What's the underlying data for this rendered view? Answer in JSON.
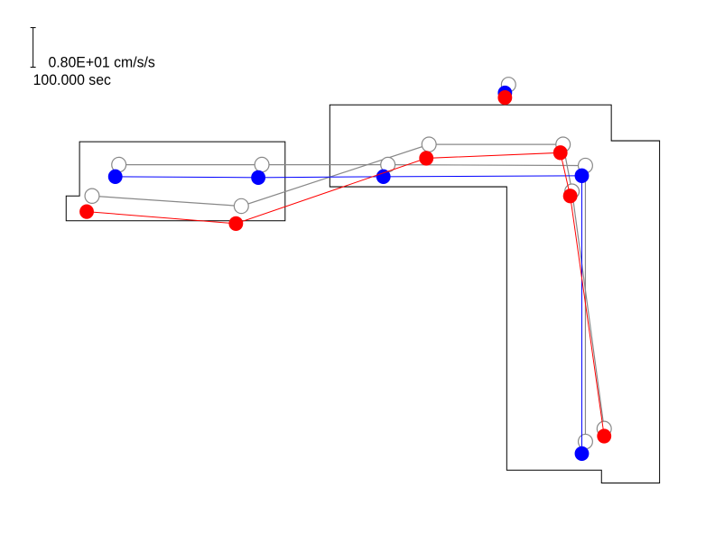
{
  "scale": {
    "label": "0.80E+01 cm/s/s",
    "time": "100.000 sec"
  }
}
